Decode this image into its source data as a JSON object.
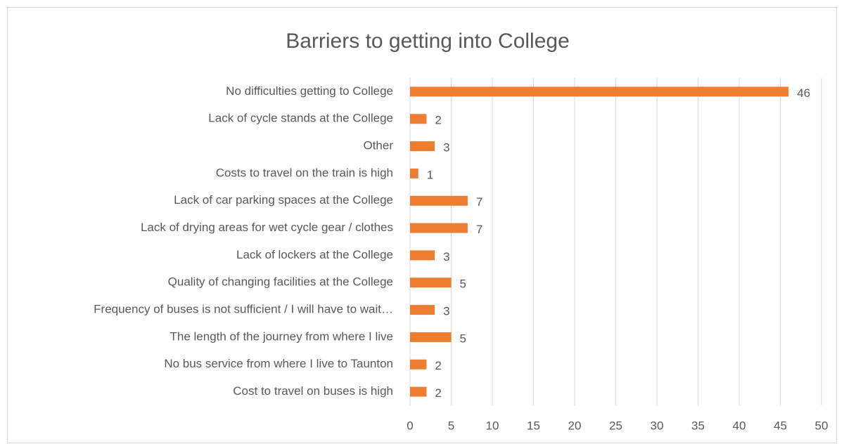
{
  "chart_data": {
    "type": "bar",
    "orientation": "horizontal",
    "title": "Barriers to getting into College",
    "categories": [
      "No difficulties getting to College",
      "Lack of cycle stands at the College",
      "Other",
      "Costs to travel on the train is high",
      "Lack of car parking spaces at the College",
      "Lack of drying areas for wet cycle gear / clothes",
      "Lack of lockers at the College",
      "Quality of changing facilities at the College",
      "Frequency of buses is not sufficient / I will have to wait…",
      "The length of the journey from where I live",
      "No bus service from where I live to Taunton",
      "Cost to travel on buses is high"
    ],
    "values": [
      46,
      2,
      3,
      1,
      7,
      7,
      3,
      5,
      3,
      5,
      2,
      2
    ],
    "color": "#ed7d31",
    "xlim": [
      0,
      50
    ],
    "xticks": [
      0,
      5,
      10,
      15,
      20,
      25,
      30,
      35,
      40,
      45,
      50
    ],
    "grid": true
  }
}
